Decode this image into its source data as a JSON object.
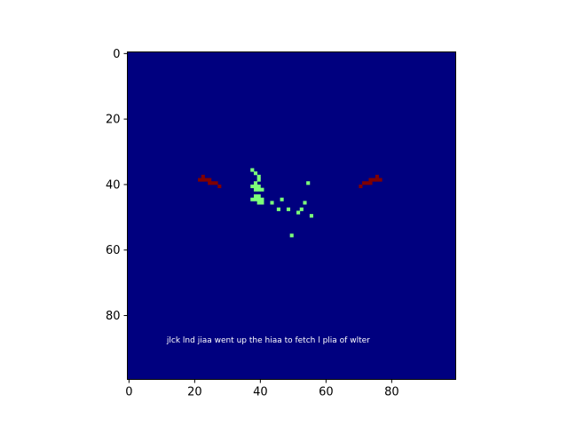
{
  "chart_data": {
    "type": "heatmap",
    "title": "",
    "xlabel": "",
    "ylabel": "",
    "grid": false,
    "colormap": "jet",
    "rows": 100,
    "cols": 100,
    "xlim": [
      0,
      100
    ],
    "ylim": [
      100,
      0
    ],
    "x_ticks": [
      "0",
      "20",
      "40",
      "60",
      "80"
    ],
    "y_ticks": [
      "0",
      "20",
      "40",
      "60",
      "80"
    ],
    "background_value": 0,
    "background_color": "#00007f",
    "levels": [
      {
        "value": 0.4,
        "color": "#7cff79"
      },
      {
        "value": 1.0,
        "color": "#7f0000"
      }
    ],
    "cells": [
      {
        "x": 22,
        "y": 39,
        "value": 1.0
      },
      {
        "x": 23,
        "y": 38,
        "value": 1.0
      },
      {
        "x": 23,
        "y": 39,
        "value": 1.0
      },
      {
        "x": 24,
        "y": 39,
        "value": 1.0
      },
      {
        "x": 25,
        "y": 39,
        "value": 1.0
      },
      {
        "x": 25,
        "y": 40,
        "value": 1.0
      },
      {
        "x": 26,
        "y": 40,
        "value": 1.0
      },
      {
        "x": 27,
        "y": 40,
        "value": 1.0
      },
      {
        "x": 28,
        "y": 41,
        "value": 1.0
      },
      {
        "x": 71,
        "y": 41,
        "value": 1.0
      },
      {
        "x": 72,
        "y": 40,
        "value": 1.0
      },
      {
        "x": 73,
        "y": 40,
        "value": 1.0
      },
      {
        "x": 74,
        "y": 40,
        "value": 1.0
      },
      {
        "x": 74,
        "y": 39,
        "value": 1.0
      },
      {
        "x": 75,
        "y": 39,
        "value": 1.0
      },
      {
        "x": 76,
        "y": 39,
        "value": 1.0
      },
      {
        "x": 76,
        "y": 38,
        "value": 1.0
      },
      {
        "x": 77,
        "y": 39,
        "value": 1.0
      },
      {
        "x": 38,
        "y": 36,
        "value": 0.4
      },
      {
        "x": 39,
        "y": 37,
        "value": 0.4
      },
      {
        "x": 40,
        "y": 38,
        "value": 0.4
      },
      {
        "x": 40,
        "y": 39,
        "value": 0.4
      },
      {
        "x": 39,
        "y": 40,
        "value": 0.4
      },
      {
        "x": 38,
        "y": 41,
        "value": 0.4
      },
      {
        "x": 39,
        "y": 41,
        "value": 0.4
      },
      {
        "x": 40,
        "y": 41,
        "value": 0.4
      },
      {
        "x": 39,
        "y": 42,
        "value": 0.4
      },
      {
        "x": 40,
        "y": 42,
        "value": 0.4
      },
      {
        "x": 41,
        "y": 42,
        "value": 0.4
      },
      {
        "x": 39,
        "y": 44,
        "value": 0.4
      },
      {
        "x": 40,
        "y": 44,
        "value": 0.4
      },
      {
        "x": 38,
        "y": 45,
        "value": 0.4
      },
      {
        "x": 39,
        "y": 45,
        "value": 0.4
      },
      {
        "x": 40,
        "y": 45,
        "value": 0.4
      },
      {
        "x": 41,
        "y": 45,
        "value": 0.4
      },
      {
        "x": 40,
        "y": 46,
        "value": 0.4
      },
      {
        "x": 41,
        "y": 46,
        "value": 0.4
      },
      {
        "x": 44,
        "y": 46,
        "value": 0.4
      },
      {
        "x": 47,
        "y": 45,
        "value": 0.4
      },
      {
        "x": 46,
        "y": 48,
        "value": 0.4
      },
      {
        "x": 49,
        "y": 48,
        "value": 0.4
      },
      {
        "x": 52,
        "y": 49,
        "value": 0.4
      },
      {
        "x": 53,
        "y": 48,
        "value": 0.4
      },
      {
        "x": 54,
        "y": 46,
        "value": 0.4
      },
      {
        "x": 55,
        "y": 40,
        "value": 0.4
      },
      {
        "x": 56,
        "y": 50,
        "value": 0.4
      },
      {
        "x": 50,
        "y": 56,
        "value": 0.4
      }
    ],
    "annotations": [
      {
        "text": "jlck lnd jiaa went up the hiaa to fetch l plia of wlter",
        "x": 12,
        "y": 88.7,
        "color": "#ffffff"
      }
    ]
  }
}
